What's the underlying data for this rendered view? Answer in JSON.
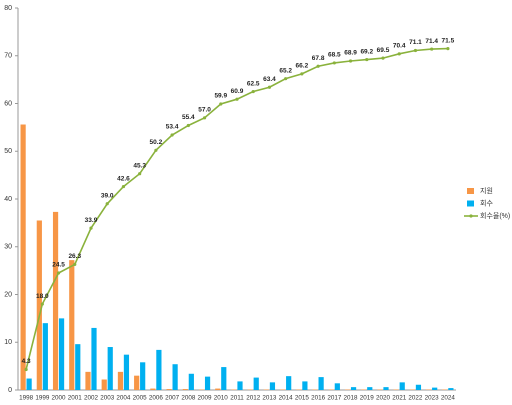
{
  "chart_data": {
    "type": "bar",
    "categories": [
      "1998",
      "1999",
      "2000",
      "2001",
      "2002",
      "2003",
      "2004",
      "2005",
      "2006",
      "2007",
      "2008",
      "2009",
      "2010",
      "2011",
      "2012",
      "2013",
      "2014",
      "2015",
      "2016",
      "2017",
      "2018",
      "2019",
      "2020",
      "2021",
      "2022",
      "2023",
      "2024"
    ],
    "series": [
      {
        "name": "지원",
        "type": "bar",
        "color": "#f79646",
        "values": [
          55.6,
          35.5,
          37.3,
          27.2,
          3.8,
          2.2,
          3.8,
          3.0,
          0.3,
          0.2,
          0.2,
          0.1,
          0.3,
          0.1,
          0.1,
          0.1,
          0.1,
          0.1,
          0.1,
          0.1,
          0.1,
          0.1,
          0.1,
          0.1,
          0.1,
          0.1,
          0.1
        ]
      },
      {
        "name": "회수",
        "type": "bar",
        "color": "#00b0f0",
        "values": [
          2.4,
          14.0,
          15.0,
          9.6,
          13.0,
          9.0,
          7.4,
          5.8,
          8.4,
          5.4,
          3.4,
          2.8,
          4.8,
          1.8,
          2.6,
          1.6,
          2.9,
          1.8,
          2.7,
          1.4,
          0.6,
          0.6,
          0.6,
          1.6,
          1.1,
          0.5,
          0.4
        ]
      },
      {
        "name": "회수율(%)",
        "type": "line",
        "color": "#8ab23c",
        "values": [
          4.3,
          18.0,
          24.5,
          26.3,
          33.9,
          39.0,
          42.6,
          45.3,
          50.2,
          53.4,
          55.4,
          57.0,
          59.9,
          60.9,
          62.5,
          63.4,
          65.2,
          66.2,
          67.8,
          68.5,
          68.9,
          69.2,
          69.5,
          70.4,
          71.1,
          71.4,
          71.5
        ],
        "value_labels": [
          "4.3",
          "18.0",
          "24.5",
          "26.3",
          "33.9",
          "39.0",
          "42.6",
          "45.3",
          "50.2",
          "53.4",
          "55.4",
          "57.0",
          "59.9",
          "60.9",
          "62.5",
          "63.4",
          "65.2",
          "66.2",
          "67.8",
          "68.5",
          "68.9",
          "69.2",
          "69.5",
          "70.4",
          "71.1",
          "71.4",
          "71.5"
        ]
      }
    ],
    "ylim": [
      0,
      80
    ],
    "yticks": [
      0,
      10,
      20,
      30,
      40,
      50,
      60,
      70,
      80
    ],
    "grid": false,
    "legend": "right"
  }
}
